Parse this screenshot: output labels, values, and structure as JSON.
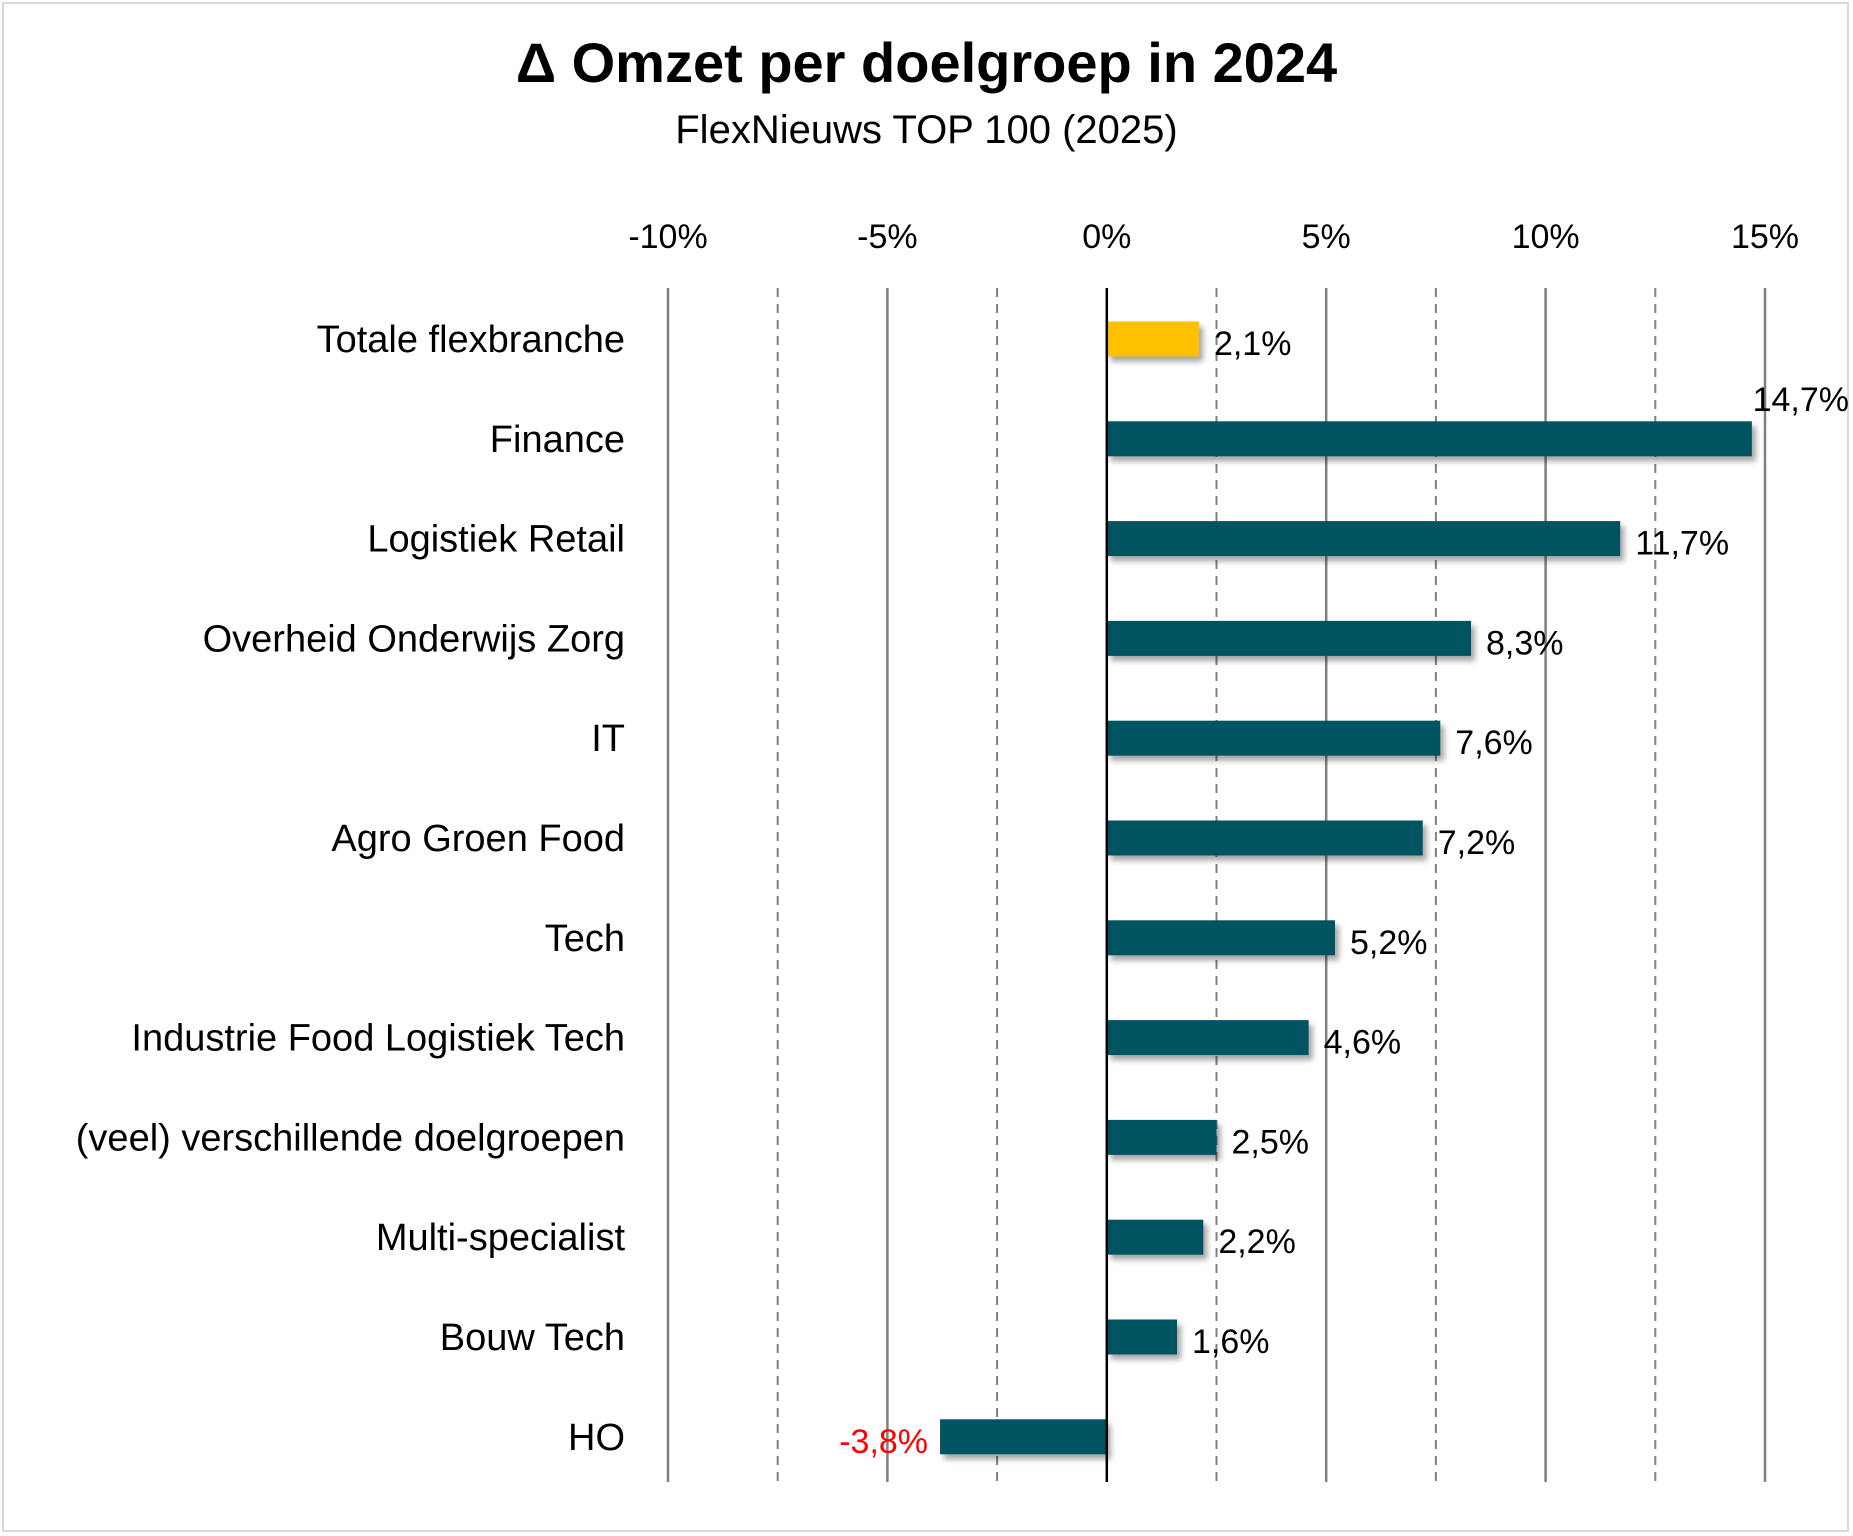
{
  "chart_data": {
    "type": "bar",
    "orientation": "horizontal",
    "title": "Δ Omzet per doelgroep in 2024",
    "subtitle": "FlexNieuws TOP 100 (2025)",
    "xlabel": "",
    "ylabel": "",
    "xlim": [
      -10,
      15
    ],
    "x_ticks": [
      -10,
      -5,
      0,
      5,
      10,
      15
    ],
    "x_tick_labels": [
      "-10%",
      "-5%",
      "0%",
      "5%",
      "10%",
      "15%"
    ],
    "x_axis_position": "top",
    "grid": "vertical, solid at major ticks, dashed at midpoints",
    "legend": "none",
    "categories": [
      "Totale flexbranche",
      "Finance",
      "Logistiek Retail",
      "Overheid Onderwijs Zorg",
      "IT",
      "Agro Groen Food",
      "Tech",
      "Industrie Food Logistiek Tech",
      "(veel) verschillende doelgroepen",
      "Multi-specialist",
      "Bouw Tech",
      "HO"
    ],
    "values": [
      2.1,
      14.7,
      11.7,
      8.3,
      7.6,
      7.2,
      5.2,
      4.6,
      2.5,
      2.2,
      1.6,
      -3.8
    ],
    "data_labels": [
      "2,1%",
      "14,7%",
      "11,7%",
      "8,3%",
      "7,6%",
      "7,2%",
      "5,2%",
      "4,6%",
      "2,5%",
      "2,2%",
      "1,6%",
      "-3,8%"
    ],
    "colors": {
      "highlight_bar": "#FFC000",
      "bar": "#005260",
      "negative_label": "#FF0000",
      "label": "#000000",
      "grid": "#7f7f7f"
    }
  }
}
